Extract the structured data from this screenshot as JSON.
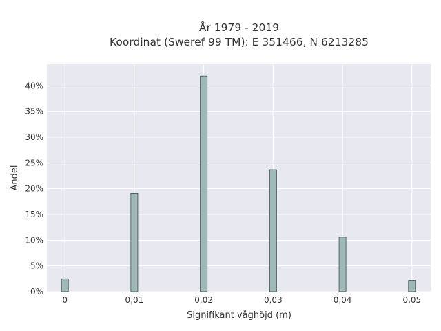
{
  "chart_data": {
    "type": "bar",
    "title": "År 1979 - 2019",
    "subtitle": "Koordinat (Sweref 99 TM): E 351466, N 6213285",
    "xlabel": "Signifikant våghöjd (m)",
    "ylabel": "Andel",
    "x_tick_labels": [
      "0",
      "0,01",
      "0,02",
      "0,03",
      "0,04",
      "0,05"
    ],
    "y_tick_labels": [
      "0%",
      "5%",
      "10%",
      "15%",
      "20%",
      "25%",
      "30%",
      "35%",
      "40%"
    ],
    "x_ticks": [
      0,
      0.01,
      0.02,
      0.03,
      0.04,
      0.05
    ],
    "y_ticks": [
      0,
      5,
      10,
      15,
      20,
      25,
      30,
      35,
      40
    ],
    "xlim": [
      -0.0026,
      0.0528
    ],
    "ylim": [
      0,
      44.2
    ],
    "categories": [
      0,
      0.01,
      0.02,
      0.03,
      0.04,
      0.05
    ],
    "values": [
      2.5,
      19.1,
      41.9,
      23.7,
      10.6,
      2.2
    ],
    "bar_width": 0.001,
    "grid": true,
    "colors": {
      "plot_background": "#e8e8f0",
      "grid": "#ffffff",
      "bar_fill": "#9fb8b8",
      "bar_stroke": "#3d4b4b",
      "text": "#333333"
    }
  }
}
